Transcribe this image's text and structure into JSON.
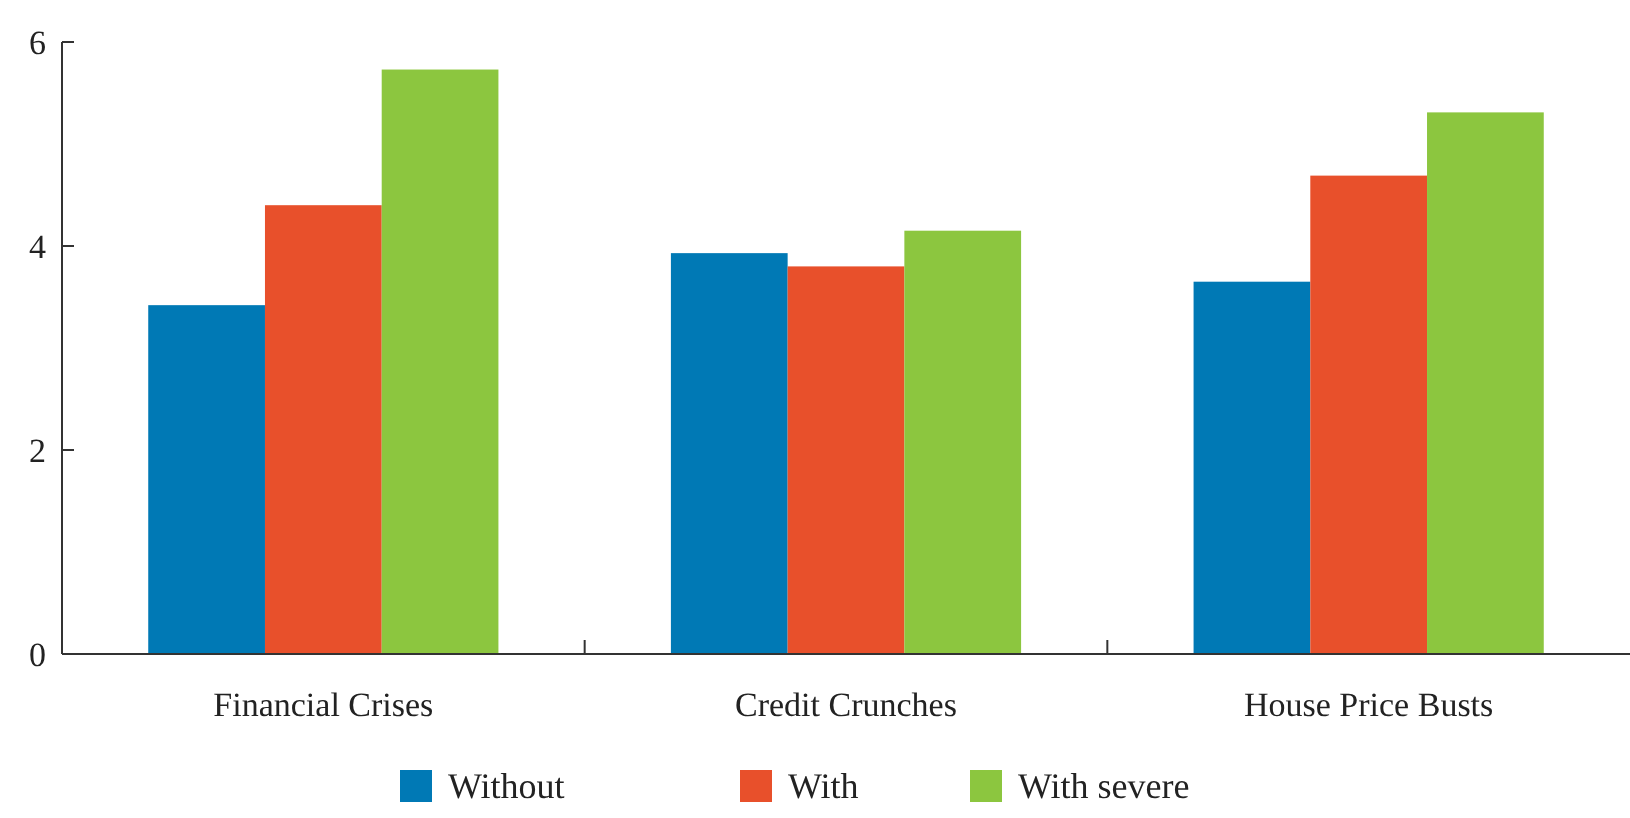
{
  "chart_data": {
    "type": "bar",
    "categories": [
      "Financial Crises",
      "Credit Crunches",
      "House Price Busts"
    ],
    "series": [
      {
        "name": "Without",
        "color": "#0079b5",
        "values": [
          3.42,
          3.93,
          3.65
        ]
      },
      {
        "name": "With",
        "color": "#e8502b",
        "values": [
          4.4,
          3.8,
          4.69
        ]
      },
      {
        "name": "With severe",
        "color": "#8cc63f",
        "values": [
          5.73,
          4.15,
          5.31
        ]
      }
    ],
    "ylim": [
      0,
      6
    ],
    "yticks": [
      0,
      2,
      4,
      6
    ],
    "grid": false,
    "legend": "bottom"
  }
}
